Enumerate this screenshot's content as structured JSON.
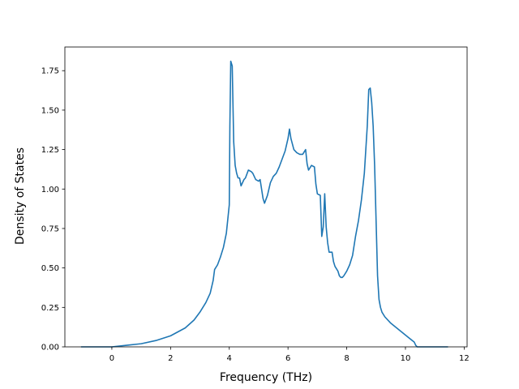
{
  "chart_data": {
    "type": "line",
    "title": "",
    "xlabel": "Frequency (THz)",
    "ylabel": "Density of States",
    "xlim": [
      -1.6,
      12.1
    ],
    "ylim": [
      0.0,
      1.9
    ],
    "xticks": [
      0,
      2,
      4,
      6,
      8,
      10,
      12
    ],
    "yticks": [
      0.0,
      0.25,
      0.5,
      0.75,
      1.0,
      1.25,
      1.5,
      1.75
    ],
    "xtick_labels": [
      "0",
      "2",
      "4",
      "6",
      "8",
      "10",
      "12"
    ],
    "ytick_labels": [
      "0.00",
      "0.25",
      "0.50",
      "0.75",
      "1.00",
      "1.25",
      "1.50",
      "1.75"
    ],
    "grid": false,
    "line_color": "#1f77b4",
    "series": [
      {
        "x": [
          -1.05,
          0.0,
          0.5,
          1.0,
          1.5,
          2.0,
          2.5,
          2.8,
          3.0,
          3.2,
          3.35,
          3.45,
          3.5,
          3.6,
          3.7,
          3.8,
          3.9,
          4.0,
          4.02,
          4.05,
          4.1,
          4.15,
          4.2,
          4.25,
          4.3,
          4.35,
          4.4,
          4.5,
          4.55,
          4.65,
          4.75,
          4.8,
          4.9,
          5.0,
          5.05,
          5.15,
          5.2,
          5.3,
          5.4,
          5.5,
          5.6,
          5.7,
          5.8,
          5.9,
          6.0,
          6.05,
          6.1,
          6.2,
          6.3,
          6.4,
          6.5,
          6.6,
          6.65,
          6.7,
          6.8,
          6.9,
          6.95,
          7.0,
          7.1,
          7.15,
          7.2,
          7.25,
          7.3,
          7.35,
          7.4,
          7.5,
          7.55,
          7.6,
          7.7,
          7.75,
          7.8,
          7.85,
          7.9,
          8.0,
          8.1,
          8.2,
          8.3,
          8.4,
          8.5,
          8.6,
          8.7,
          8.75,
          8.8,
          8.85,
          8.9,
          8.95,
          9.0,
          9.05,
          9.1,
          9.15,
          9.2,
          9.3,
          9.5,
          9.7,
          9.9,
          10.1,
          10.3,
          10.35,
          10.4,
          10.5,
          11.45
        ],
        "y": [
          0.0,
          0.0,
          0.01,
          0.02,
          0.04,
          0.07,
          0.12,
          0.17,
          0.22,
          0.28,
          0.34,
          0.42,
          0.49,
          0.52,
          0.57,
          0.63,
          0.72,
          0.9,
          1.4,
          1.81,
          1.78,
          1.3,
          1.15,
          1.1,
          1.07,
          1.07,
          1.02,
          1.06,
          1.07,
          1.12,
          1.11,
          1.1,
          1.06,
          1.05,
          1.06,
          0.94,
          0.91,
          0.96,
          1.04,
          1.08,
          1.1,
          1.14,
          1.19,
          1.24,
          1.32,
          1.38,
          1.32,
          1.25,
          1.23,
          1.22,
          1.22,
          1.25,
          1.16,
          1.12,
          1.15,
          1.14,
          1.03,
          0.97,
          0.96,
          0.7,
          0.76,
          0.97,
          0.76,
          0.66,
          0.6,
          0.6,
          0.54,
          0.51,
          0.48,
          0.45,
          0.44,
          0.44,
          0.45,
          0.48,
          0.52,
          0.58,
          0.7,
          0.8,
          0.93,
          1.1,
          1.4,
          1.63,
          1.64,
          1.55,
          1.4,
          1.15,
          0.8,
          0.45,
          0.3,
          0.25,
          0.22,
          0.19,
          0.15,
          0.12,
          0.09,
          0.06,
          0.03,
          0.01,
          0.0,
          0.0,
          0.0
        ]
      }
    ]
  }
}
